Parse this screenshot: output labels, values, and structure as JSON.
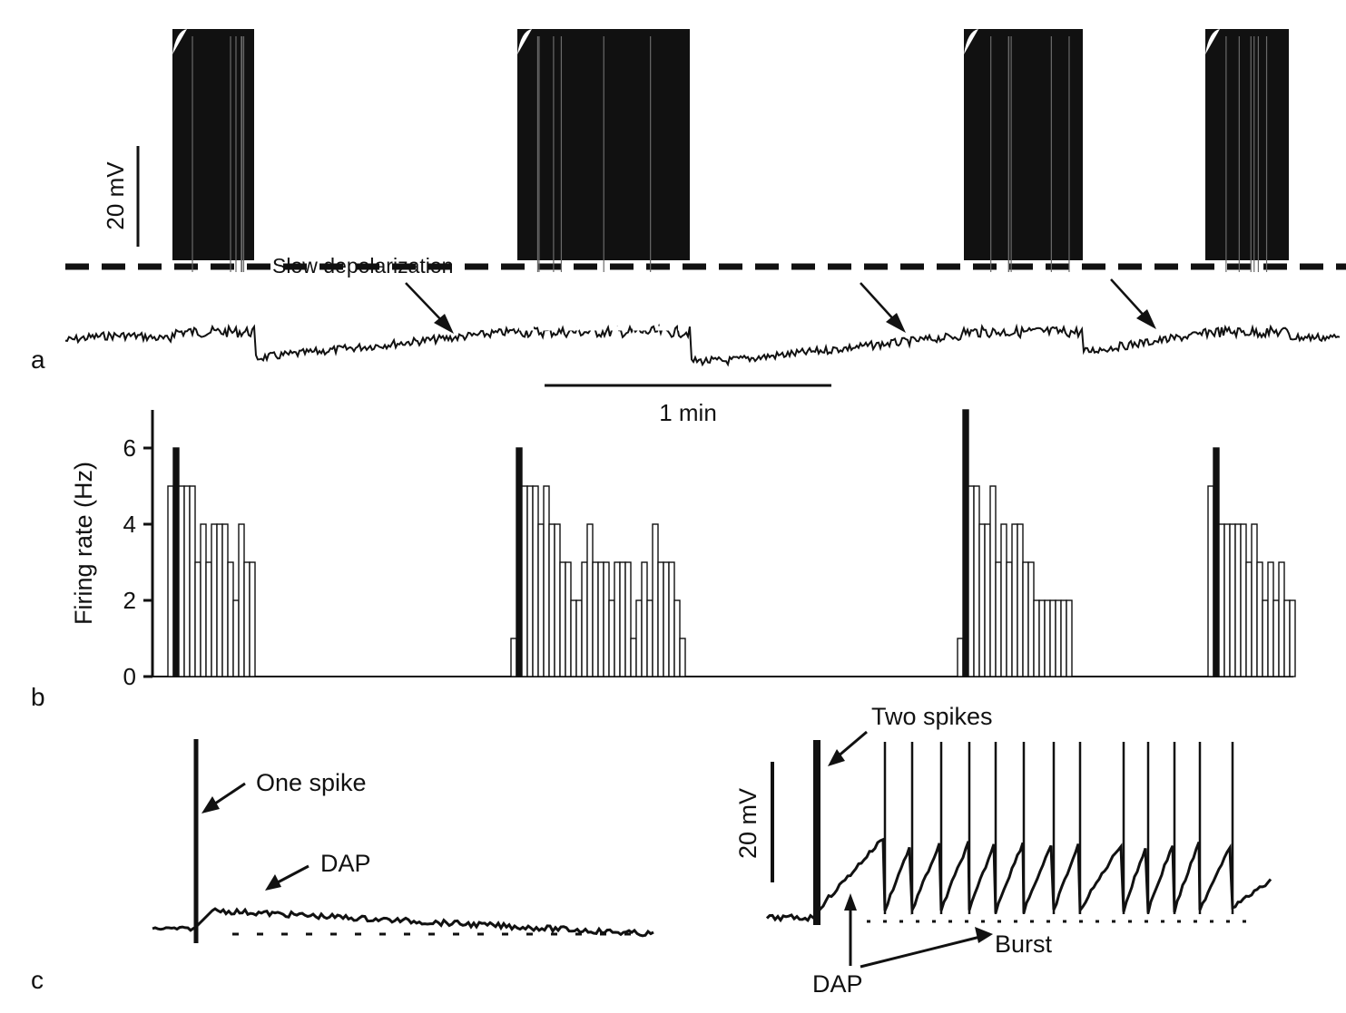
{
  "colors": {
    "trace": "#111111",
    "background": "#ffffff",
    "baseline_dash": "#111111",
    "bar_fill": "#ffffff",
    "first_bar_fill": "#111111"
  },
  "panel_a": {
    "panel_label": "a",
    "voltage_scale_label": "20 mV",
    "time_scale_label": "1 min",
    "annotation": "Slow depolarization",
    "bursts_count": 4
  },
  "panel_b": {
    "panel_label": "b"
  },
  "panel_c": {
    "panel_label": "c",
    "left_labels": {
      "spike": "One spike",
      "dap": "DAP"
    },
    "right_labels": {
      "spikes": "Two spikes",
      "dap": "DAP",
      "burst": "Burst",
      "voltage_scale": "20 mV"
    }
  },
  "chart_data": {
    "type": "bar",
    "title": "",
    "xlabel": "",
    "ylabel": "Firing rate (Hz)",
    "ylim": [
      0,
      7
    ],
    "yticks": [
      0,
      2,
      4,
      6
    ],
    "grid": false,
    "series": [
      {
        "name": "",
        "values": [
          5,
          6,
          5,
          5,
          5,
          3,
          4,
          3,
          4,
          4,
          4,
          3,
          2,
          4,
          3,
          3
        ]
      },
      {
        "name": "",
        "values": [
          1,
          6,
          5,
          5,
          5,
          4,
          5,
          4,
          4,
          3,
          3,
          2,
          2,
          3,
          4,
          3,
          3,
          3,
          2,
          3,
          3,
          3,
          1,
          2,
          3,
          2,
          4,
          3,
          3,
          3,
          2,
          1
        ]
      },
      {
        "name": "",
        "values": [
          1,
          7,
          5,
          5,
          4,
          4,
          5,
          3,
          4,
          3,
          4,
          4,
          3,
          3,
          2,
          2,
          2,
          2,
          2,
          2,
          2
        ]
      },
      {
        "name": "",
        "values": [
          5,
          6,
          4,
          4,
          4,
          4,
          4,
          3,
          4,
          3,
          2,
          3,
          2,
          3,
          2,
          2
        ]
      }
    ]
  }
}
